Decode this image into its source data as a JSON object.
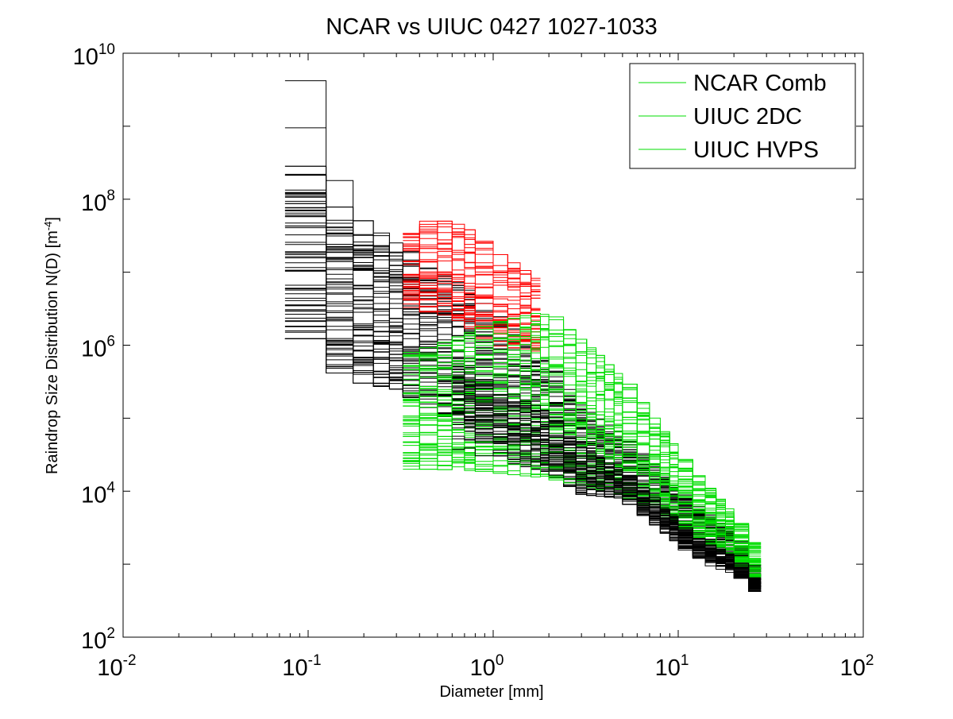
{
  "chart_data": {
    "type": "line",
    "title": "NCAR vs UIUC 0427 1027-1033",
    "xlabel": "Diameter [mm]",
    "ylabel_main": "Raindrop Size Distribution N(D) [m",
    "ylabel_sup": "-4",
    "ylabel_close": "]",
    "x_scale": "log",
    "y_scale": "log",
    "xlim": [
      0.01,
      100
    ],
    "ylim": [
      100,
      10000000000
    ],
    "grid": false,
    "legend_position": "top-right",
    "x_ticks": [
      {
        "value": 0.01,
        "base": "10",
        "exp": "-2"
      },
      {
        "value": 0.1,
        "base": "10",
        "exp": "-1"
      },
      {
        "value": 1,
        "base": "10",
        "exp": "0"
      },
      {
        "value": 10,
        "base": "10",
        "exp": "1"
      },
      {
        "value": 100,
        "base": "10",
        "exp": "2"
      }
    ],
    "y_ticks": [
      {
        "value": 100,
        "base": "10",
        "exp": "2"
      },
      {
        "value": 10000,
        "base": "10",
        "exp": "4"
      },
      {
        "value": 1000000,
        "base": "10",
        "exp": "6"
      },
      {
        "value": 100000000,
        "base": "10",
        "exp": "8"
      },
      {
        "value": 10000000000,
        "base": "10",
        "exp": "10"
      }
    ],
    "legend": [
      {
        "name": "NCAR Comb",
        "color": "#00dd00"
      },
      {
        "name": "UIUC 2DC",
        "color": "#00dd00"
      },
      {
        "name": "UIUC HVPS",
        "color": "#00dd00"
      }
    ],
    "bin_edges": [
      0.075,
      0.125,
      0.175,
      0.225,
      0.275,
      0.325,
      0.4,
      0.5,
      0.6,
      0.7,
      0.8,
      1.0,
      1.2,
      1.4,
      1.6,
      1.8,
      2.0,
      2.4,
      2.8,
      3.2,
      3.6,
      4.0,
      4.5,
      5.0,
      6.0,
      7.0,
      8.0,
      9.0,
      10.0,
      12.0,
      14.0,
      16.0,
      18.0,
      20.0,
      24.0,
      28.0
    ],
    "series": [
      {
        "color": "#000000",
        "draw_order": 1,
        "count": 70,
        "seed": 11,
        "x_start": 0.075,
        "x_end": 28.0,
        "lines": [
          {
            "x": [
              0.075,
              0.125,
              0.175,
              0.225
            ],
            "y": [
              4200000000,
              180000000,
              20000000,
              20000000
            ]
          },
          {
            "x": [
              0.075,
              0.125
            ],
            "y": [
              950000000,
              950000000
            ]
          }
        ],
        "envelope": [
          {
            "x": 0.075,
            "lo": 3000000,
            "hi": 800000000
          },
          {
            "x": 0.125,
            "lo": 500000,
            "hi": 100000000
          },
          {
            "x": 0.2,
            "lo": 300000,
            "hi": 50000000
          },
          {
            "x": 0.3,
            "lo": 250000,
            "hi": 25000000
          },
          {
            "x": 0.5,
            "lo": 120000,
            "hi": 12000000
          },
          {
            "x": 0.8,
            "lo": 60000,
            "hi": 5000000
          },
          {
            "x": 1.2,
            "lo": 25000,
            "hi": 2000000
          },
          {
            "x": 2.0,
            "lo": 18000,
            "hi": 600000
          },
          {
            "x": 3.0,
            "lo": 9000,
            "hi": 150000
          },
          {
            "x": 5.0,
            "lo": 8000,
            "hi": 60000
          },
          {
            "x": 8.0,
            "lo": 3000,
            "hi": 20000
          },
          {
            "x": 12.0,
            "lo": 1300,
            "hi": 7000
          },
          {
            "x": 20.0,
            "lo": 800,
            "hi": 3000
          },
          {
            "x": 28.0,
            "lo": 350,
            "hi": 700
          }
        ]
      },
      {
        "color": "#ff0000",
        "draw_order": 2,
        "count": 40,
        "seed": 23,
        "x_start": 0.28,
        "x_end": 1.85,
        "lines": [],
        "envelope": [
          {
            "x": 0.28,
            "lo": 4000000,
            "hi": 30000000
          },
          {
            "x": 0.4,
            "lo": 3000000,
            "hi": 50000000
          },
          {
            "x": 0.6,
            "lo": 2500000,
            "hi": 50000000
          },
          {
            "x": 0.8,
            "lo": 1500000,
            "hi": 35000000
          },
          {
            "x": 1.0,
            "lo": 1000000,
            "hi": 20000000
          },
          {
            "x": 1.4,
            "lo": 900000,
            "hi": 12000000
          },
          {
            "x": 1.85,
            "lo": 800000,
            "hi": 7000000
          }
        ]
      },
      {
        "color": "#00dd00",
        "draw_order": 3,
        "count": 55,
        "seed": 37,
        "x_start": 0.3,
        "x_end": 28.0,
        "lines": [],
        "envelope": [
          {
            "x": 0.3,
            "lo": 20000,
            "hi": 700000
          },
          {
            "x": 0.5,
            "lo": 20000,
            "hi": 1000000
          },
          {
            "x": 1.0,
            "lo": 18000,
            "hi": 2000000
          },
          {
            "x": 2.0,
            "lo": 15000,
            "hi": 3000000
          },
          {
            "x": 3.0,
            "lo": 12000,
            "hi": 1200000
          },
          {
            "x": 5.0,
            "lo": 9000,
            "hi": 400000
          },
          {
            "x": 8.0,
            "lo": 5000,
            "hi": 80000
          },
          {
            "x": 12.0,
            "lo": 2500,
            "hi": 20000
          },
          {
            "x": 20.0,
            "lo": 1200,
            "hi": 5000
          },
          {
            "x": 28.0,
            "lo": 500,
            "hi": 1500
          }
        ]
      },
      {
        "color": "#000000",
        "draw_order": 4,
        "count": 28,
        "seed": 53,
        "x_start": 0.6,
        "x_end": 28.0,
        "lines": [],
        "envelope": [
          {
            "x": 0.6,
            "lo": 40000,
            "hi": 500000
          },
          {
            "x": 1.0,
            "lo": 25000,
            "hi": 300000
          },
          {
            "x": 2.0,
            "lo": 15000,
            "hi": 120000
          },
          {
            "x": 3.0,
            "lo": 9000,
            "hi": 40000
          },
          {
            "x": 5.0,
            "lo": 8000,
            "hi": 20000
          },
          {
            "x": 8.0,
            "lo": 3000,
            "hi": 7000
          },
          {
            "x": 12.0,
            "lo": 1200,
            "hi": 2500
          },
          {
            "x": 20.0,
            "lo": 700,
            "hi": 1300
          },
          {
            "x": 28.0,
            "lo": 350,
            "hi": 550
          }
        ]
      }
    ]
  }
}
